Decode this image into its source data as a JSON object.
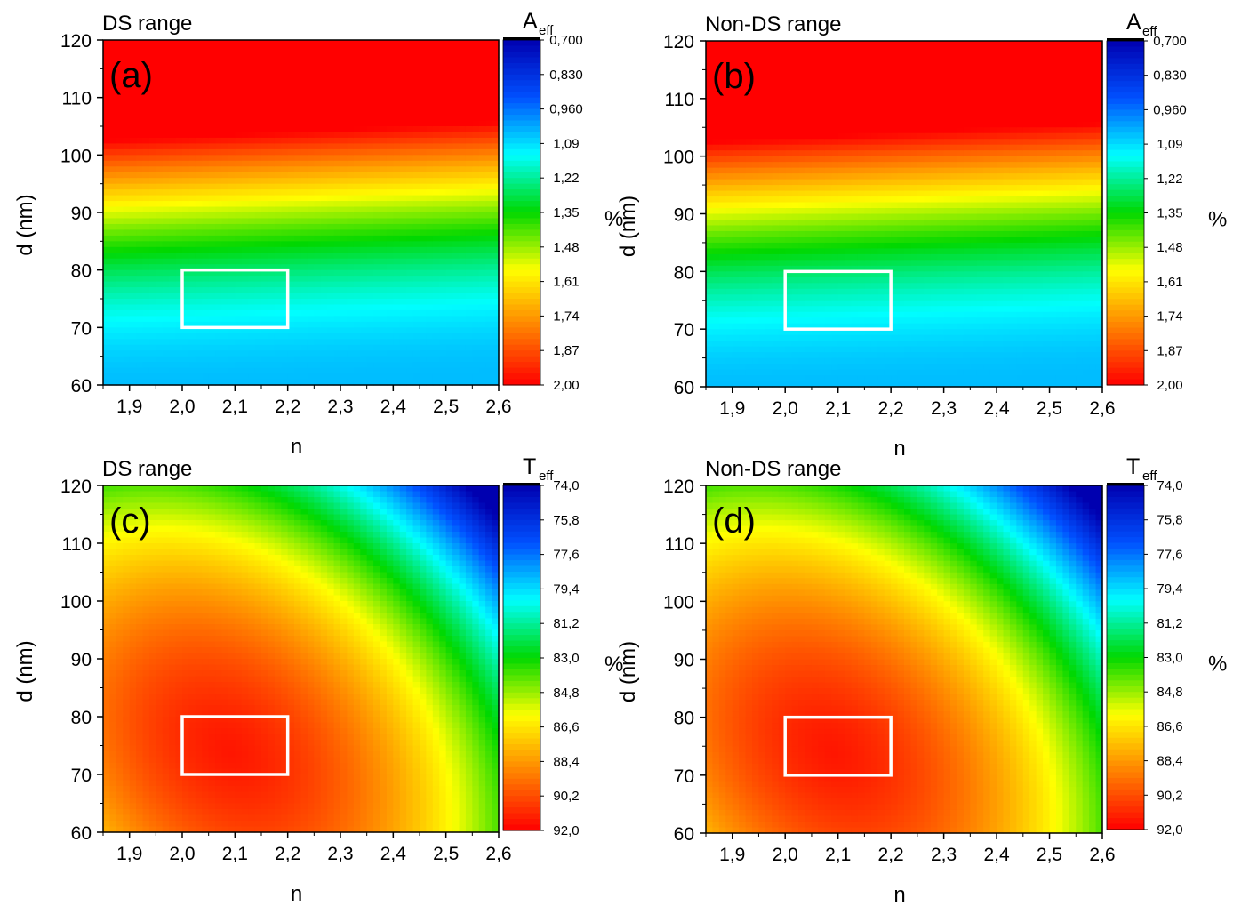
{
  "chart_data": [
    {
      "type": "heatmap",
      "panel_label": "(a)",
      "range_title": "DS range",
      "xlabel": "n",
      "ylabel": "d (nm)",
      "x_ticks": [
        "1,9",
        "2,0",
        "2,1",
        "2,2",
        "2,3",
        "2,4",
        "2,5",
        "2,6"
      ],
      "y_ticks": [
        "120",
        "110",
        "100",
        "90",
        "80",
        "70",
        "60"
      ],
      "xlim": [
        1.85,
        2.6
      ],
      "ylim": [
        60,
        120
      ],
      "colorbar": {
        "title": "A",
        "subscript": "eff",
        "unit": "%",
        "range": [
          0.7,
          2.0
        ],
        "tick_labels": [
          "0,700",
          "0,830",
          "0,960",
          "1,09",
          "1,22",
          "1,35",
          "1,48",
          "1,61",
          "1,74",
          "1,87",
          "2,00"
        ]
      },
      "highlight_box": {
        "n": [
          2.0,
          2.2
        ],
        "d": [
          70,
          80
        ],
        "color": "#ffffff"
      },
      "model": "absorption"
    },
    {
      "type": "heatmap",
      "panel_label": "(b)",
      "range_title": "Non-DS range",
      "xlabel": "n",
      "ylabel": "d (nm)",
      "x_ticks": [
        "1,9",
        "2,0",
        "2,1",
        "2,2",
        "2,3",
        "2,4",
        "2,5",
        "2,6"
      ],
      "y_ticks": [
        "120",
        "110",
        "100",
        "90",
        "80",
        "70",
        "60"
      ],
      "xlim": [
        1.85,
        2.6
      ],
      "ylim": [
        60,
        120
      ],
      "colorbar": {
        "title": "A",
        "subscript": "eff",
        "unit": "%",
        "range": [
          0.7,
          2.0
        ],
        "tick_labels": [
          "0,700",
          "0,830",
          "0,960",
          "1,09",
          "1,22",
          "1,35",
          "1,48",
          "1,61",
          "1,74",
          "1,87",
          "2,00"
        ]
      },
      "highlight_box": {
        "n": [
          2.0,
          2.2
        ],
        "d": [
          70,
          80
        ],
        "color": "#ffffff"
      },
      "model": "absorption"
    },
    {
      "type": "heatmap",
      "panel_label": "(c)",
      "range_title": "DS range",
      "xlabel": "n",
      "ylabel": "d (nm)",
      "x_ticks": [
        "1,9",
        "2,0",
        "2,1",
        "2,2",
        "2,3",
        "2,4",
        "2,5",
        "2,6"
      ],
      "y_ticks": [
        "120",
        "110",
        "100",
        "90",
        "80",
        "70",
        "60"
      ],
      "xlim": [
        1.85,
        2.6
      ],
      "ylim": [
        60,
        120
      ],
      "colorbar": {
        "title": "T",
        "subscript": "eff",
        "unit": "%",
        "range": [
          74.0,
          92.0
        ],
        "tick_labels": [
          "74,0",
          "75,8",
          "77,6",
          "79,4",
          "81,2",
          "83,0",
          "84,8",
          "86,6",
          "88,4",
          "90,2",
          "92,0"
        ]
      },
      "highlight_box": {
        "n": [
          2.0,
          2.2
        ],
        "d": [
          70,
          80
        ],
        "color": "#ffffff"
      },
      "model": "transmission"
    },
    {
      "type": "heatmap",
      "panel_label": "(d)",
      "range_title": "Non-DS range",
      "xlabel": "n",
      "ylabel": "d (nm)",
      "x_ticks": [
        "1,9",
        "2,0",
        "2,1",
        "2,2",
        "2,3",
        "2,4",
        "2,5",
        "2,6"
      ],
      "y_ticks": [
        "120",
        "110",
        "100",
        "90",
        "80",
        "70",
        "60"
      ],
      "xlim": [
        1.85,
        2.6
      ],
      "ylim": [
        60,
        120
      ],
      "colorbar": {
        "title": "T",
        "subscript": "eff",
        "unit": "%",
        "range": [
          74.0,
          92.0
        ],
        "tick_labels": [
          "74,0",
          "75,8",
          "77,6",
          "79,4",
          "81,2",
          "83,0",
          "84,8",
          "86,6",
          "88,4",
          "90,2",
          "92,0"
        ]
      },
      "highlight_box": {
        "n": [
          2.0,
          2.2
        ],
        "d": [
          70,
          80
        ],
        "color": "#ffffff"
      },
      "model": "transmission"
    }
  ],
  "colormap": [
    "#ff0000",
    "#ff8000",
    "#ffff00",
    "#00d800",
    "#00ffff",
    "#0050ff",
    "#0000b0"
  ]
}
